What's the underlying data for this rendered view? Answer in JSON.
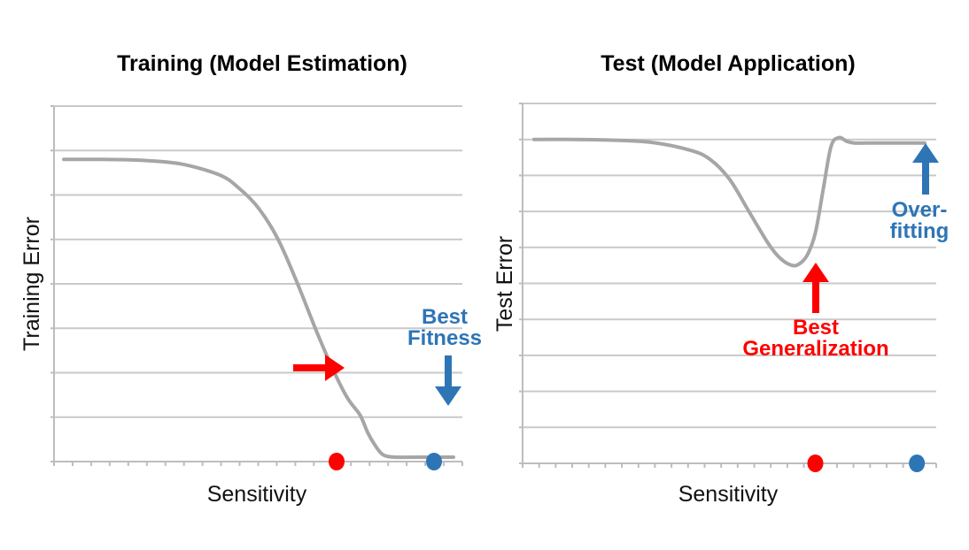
{
  "chart_data": [
    {
      "type": "line",
      "title": "Training (Model Estimation)",
      "xlabel": "Sensitivity",
      "ylabel": "Training Error",
      "xlim": [
        0,
        100
      ],
      "ylim": [
        0,
        8
      ],
      "grid": true,
      "y_gridlines": 8,
      "x_ticks": 22,
      "series": [
        {
          "name": "Training Error",
          "color": "#a6a6a6",
          "x": [
            0,
            10,
            20,
            30,
            40,
            45,
            50,
            55,
            60,
            65,
            70,
            73,
            76,
            78,
            80,
            82,
            85,
            90,
            95,
            100
          ],
          "y": [
            6.8,
            6.8,
            6.78,
            6.7,
            6.45,
            6.15,
            5.7,
            5.0,
            4.0,
            2.9,
            1.9,
            1.4,
            1.05,
            0.65,
            0.35,
            0.15,
            0.1,
            0.1,
            0.1,
            0.1
          ]
        }
      ],
      "markers": [
        {
          "x": 70,
          "color": "#ff0000",
          "label": "red-dot"
        },
        {
          "x": 95,
          "color": "#2e75b6",
          "label": "blue-dot"
        }
      ],
      "annotations": [
        {
          "text_lines": [
            "Best",
            "Fitness"
          ],
          "color": "#2e75b6",
          "arrow": "down",
          "points_to": {
            "x": 95,
            "y": 0.1
          }
        },
        {
          "text_lines": [],
          "color": "#ff0000",
          "arrow": "right",
          "points_to": {
            "x": 73,
            "y": 2.0
          }
        }
      ]
    },
    {
      "type": "line",
      "title": "Test (Model Application)",
      "xlabel": "Sensitivity",
      "ylabel": "Test Error",
      "xlim": [
        0,
        100
      ],
      "ylim": [
        0,
        10
      ],
      "grid": true,
      "y_gridlines": 10,
      "x_ticks": 25,
      "series": [
        {
          "name": "Test Error",
          "color": "#a6a6a6",
          "x": [
            0,
            10,
            20,
            30,
            40,
            45,
            50,
            55,
            60,
            63,
            66,
            68,
            70,
            72,
            74,
            76,
            78,
            80,
            82,
            85,
            88,
            92,
            96,
            100
          ],
          "y": [
            9.0,
            9.0,
            8.98,
            8.92,
            8.7,
            8.45,
            7.9,
            7.0,
            6.1,
            5.7,
            5.5,
            5.55,
            5.8,
            6.4,
            7.6,
            8.8,
            9.05,
            8.95,
            8.9,
            8.9,
            8.9,
            8.9,
            8.9,
            8.9
          ]
        }
      ],
      "markers": [
        {
          "x": 72,
          "color": "#ff0000",
          "label": "red-dot"
        },
        {
          "x": 98,
          "color": "#2e75b6",
          "label": "blue-dot"
        }
      ],
      "annotations": [
        {
          "text_lines": [
            "Over-",
            "fitting"
          ],
          "color": "#2e75b6",
          "arrow": "up",
          "points_to": {
            "x": 98,
            "y": 8.9
          }
        },
        {
          "text_lines": [
            "Best",
            "Generalization"
          ],
          "color": "#ff0000",
          "arrow": "up",
          "points_to": {
            "x": 72,
            "y": 5.5
          }
        }
      ]
    }
  ]
}
